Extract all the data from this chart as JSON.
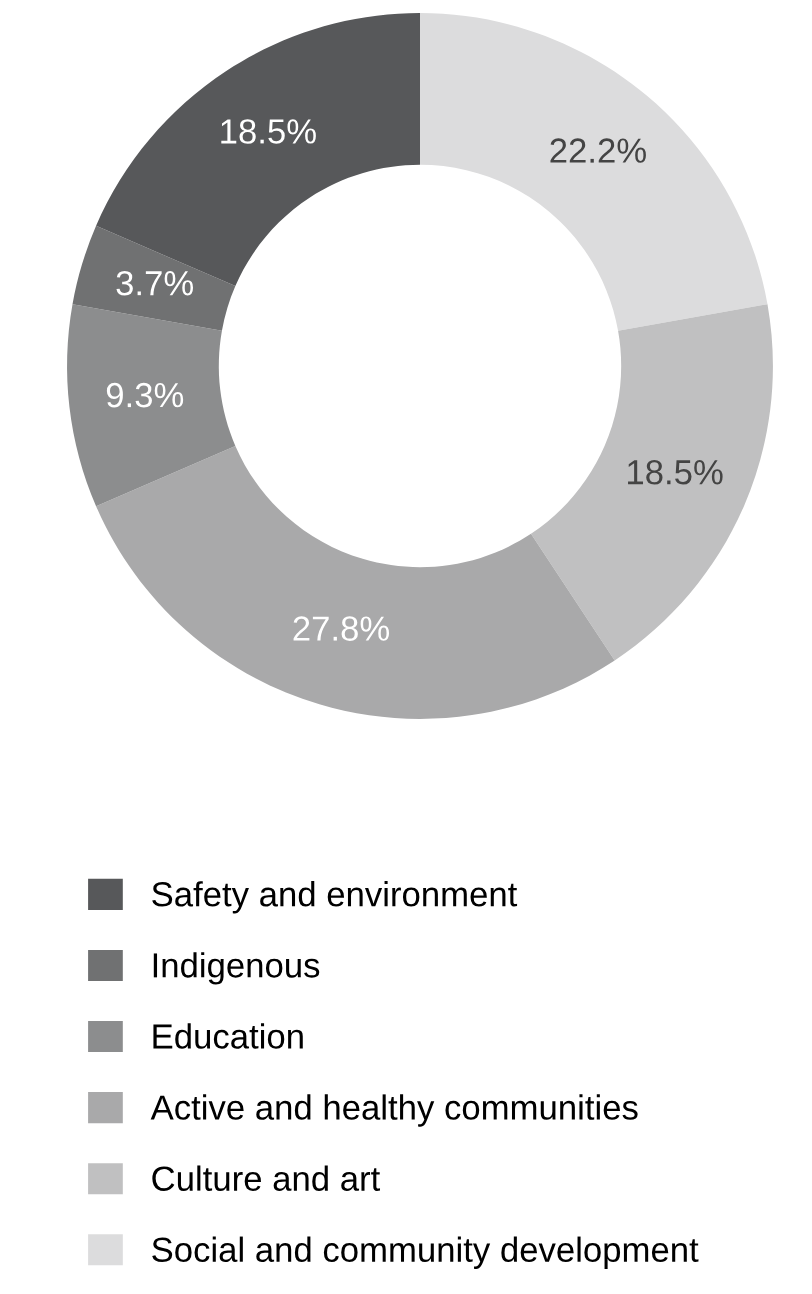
{
  "chart_data": {
    "type": "donut",
    "categories": [
      "Social and community development",
      "Culture and art",
      "Active and healthy communities",
      "Education",
      "Indigenous",
      "Safety and environment"
    ],
    "values": [
      22.2,
      18.5,
      27.8,
      9.3,
      3.7,
      18.5
    ],
    "colors": [
      "#dcdcdd",
      "#c0c0c1",
      "#a9a9aa",
      "#8c8d8e",
      "#707172",
      "#57585a"
    ],
    "value_labels": [
      "22.2%",
      "18.5%",
      "27.8%",
      "9.3%",
      "3.7%",
      "18.5%"
    ],
    "legend": "bottom"
  }
}
